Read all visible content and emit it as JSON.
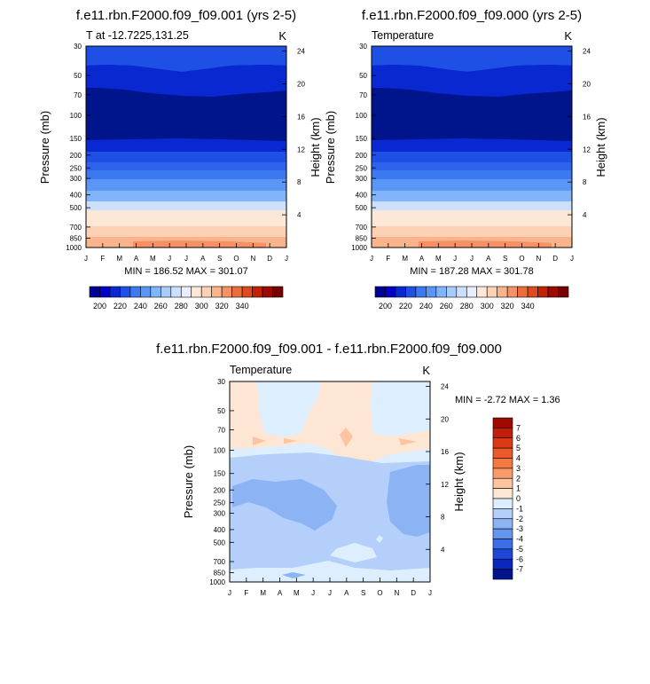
{
  "chart_data": [
    {
      "type": "heatmap",
      "title": "f.e11.rbn.F2000.f09_f09.001 (yrs 2-5)",
      "left_string": "T at -12.7225,131.25",
      "right_string": "K",
      "ylabel": "Pressure (mb)",
      "ylabel_right": "Height (km)",
      "x_ticks": [
        "J",
        "F",
        "M",
        "A",
        "M",
        "J",
        "J",
        "A",
        "S",
        "O",
        "N",
        "D",
        "J"
      ],
      "y_ticks": [
        "30",
        "50",
        "70",
        "100",
        "150",
        "200",
        "250",
        "300",
        "400",
        "500",
        "700",
        "850",
        "1000"
      ],
      "y_ticks_right": [
        "24",
        "20",
        "16",
        "12",
        "8",
        "4"
      ],
      "min_max": "MIN = 186.52 MAX = 301.07",
      "contour_levels": [
        200,
        210,
        220,
        230,
        240,
        250,
        260,
        270,
        280,
        290,
        300
      ],
      "colorbar_labels": [
        "200",
        "220",
        "240",
        "260",
        "280",
        "300",
        "320",
        "340"
      ],
      "colorbar_colors": [
        "#000096",
        "#0000c8",
        "#0a28d2",
        "#1e50e6",
        "#3c78f0",
        "#5a96f5",
        "#82b4fa",
        "#a8cdfd",
        "#cce0fe",
        "#e8eeff",
        "#fde8d8",
        "#fdd2b4",
        "#fab48c",
        "#f59164",
        "#eb6c3c",
        "#dc4a1e",
        "#c02208",
        "#9e0a00",
        "#780000"
      ]
    },
    {
      "type": "heatmap",
      "title": "f.e11.rbn.F2000.f09_f09.000 (yrs 2-5)",
      "left_string": "Temperature",
      "right_string": "K",
      "ylabel": "Pressure (mb)",
      "ylabel_right": "Height (km)",
      "x_ticks": [
        "J",
        "F",
        "M",
        "A",
        "M",
        "J",
        "J",
        "A",
        "S",
        "O",
        "N",
        "D",
        "J"
      ],
      "y_ticks": [
        "30",
        "50",
        "70",
        "100",
        "150",
        "200",
        "250",
        "300",
        "400",
        "500",
        "700",
        "850",
        "1000"
      ],
      "y_ticks_right": [
        "24",
        "20",
        "16",
        "12",
        "8",
        "4"
      ],
      "min_max": "MIN = 187.28 MAX = 301.78",
      "contour_levels": [
        200,
        210,
        220,
        230,
        240,
        250,
        260,
        270,
        280,
        290,
        300
      ],
      "colorbar_labels": [
        "200",
        "220",
        "240",
        "260",
        "280",
        "300",
        "320",
        "340"
      ]
    },
    {
      "type": "heatmap",
      "title": "f.e11.rbn.F2000.f09_f09.001 - f.e11.rbn.F2000.f09_f09.000",
      "left_string": "Temperature",
      "right_string": "K",
      "ylabel": "Pressure (mb)",
      "ylabel_right": "Height (km)",
      "x_ticks": [
        "J",
        "F",
        "M",
        "A",
        "M",
        "J",
        "J",
        "A",
        "S",
        "O",
        "N",
        "D",
        "J"
      ],
      "y_ticks": [
        "30",
        "50",
        "70",
        "100",
        "150",
        "200",
        "250",
        "300",
        "400",
        "500",
        "700",
        "850",
        "1000"
      ],
      "y_ticks_right": [
        "24",
        "20",
        "16",
        "12",
        "8",
        "4"
      ],
      "min_max": "MIN =  -2.72 MAX =   1.36",
      "colorbar_labels": [
        "7",
        "6",
        "5",
        "4",
        "3",
        "2",
        "1",
        "0",
        "-1",
        "-2",
        "-3",
        "-4",
        "-5",
        "-6",
        "-7"
      ],
      "colorbar_colors": [
        "#9e0a00",
        "#c01e0a",
        "#dc3a14",
        "#eb5a28",
        "#f57840",
        "#fa9a6a",
        "#fcc4a0",
        "#fde6d4",
        "#ddeeff",
        "#b4d0fa",
        "#8cb4f5",
        "#6496f0",
        "#3c6ee6",
        "#1e46d7",
        "#0a28be",
        "#00148c"
      ]
    }
  ]
}
